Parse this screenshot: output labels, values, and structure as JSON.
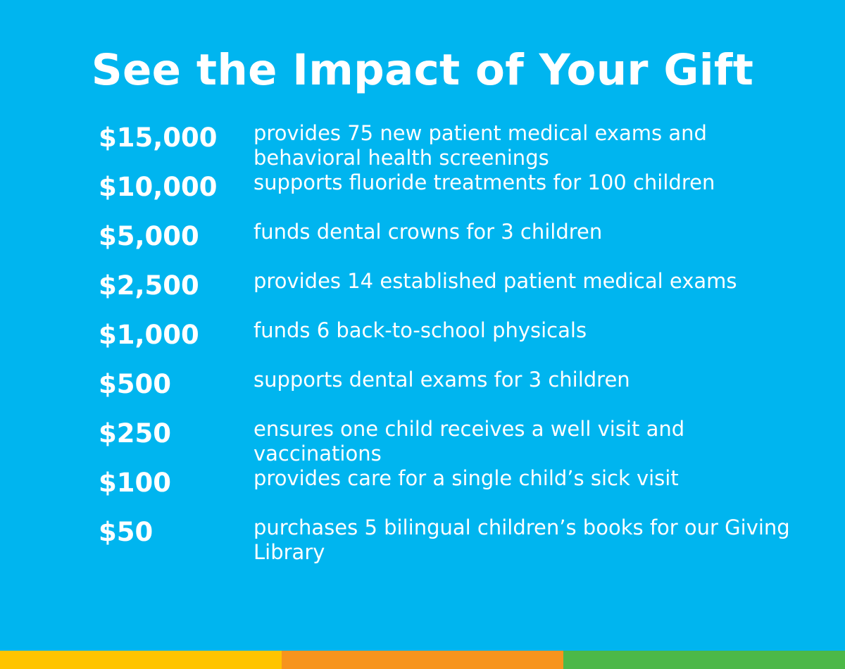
{
  "title": "See the Impact of Your Gift",
  "rows": [
    {
      "amount": "$15,000",
      "description": "provides 75 new patient medical exams and behavioral health screenings"
    },
    {
      "amount": "$10,000",
      "description": "supports fluoride treatments for 100 children"
    },
    {
      "amount": "$5,000",
      "description": "funds dental crowns for 3 children"
    },
    {
      "amount": "$2,500",
      "description": "provides 14 established patient medical exams"
    },
    {
      "amount": "$1,000",
      "description": "funds 6 back-to-school physicals"
    },
    {
      "amount": "$500",
      "description": "supports dental exams for 3 children"
    },
    {
      "amount": "$250",
      "description": "ensures one child receives a well visit and vaccinations"
    },
    {
      "amount": "$100",
      "description": "provides care for a single child’s sick visit"
    },
    {
      "amount": "$50",
      "description": "purchases 5 bilingual children’s books for our Giving Library"
    }
  ],
  "colors": {
    "background": "#00b5ef",
    "text": "#ffffff",
    "bar_yellow": "#ffc400",
    "bar_orange": "#f7941d",
    "bar_green": "#4cb848"
  }
}
